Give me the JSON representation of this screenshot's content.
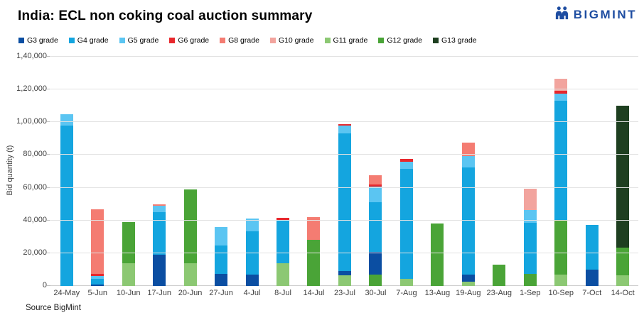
{
  "brand": {
    "name": "BIGMINT",
    "color": "#1E4DA1"
  },
  "source": "Source BigMint",
  "grade_colors": {
    "G3": "#0B4EA2",
    "G4": "#14A5DF",
    "G5": "#5BC5F2",
    "G6": "#E8282D",
    "G8": "#F47C72",
    "G10": "#F2A49E",
    "G11": "#8CC873",
    "G12": "#4AA437",
    "G13": "#1E3F20"
  },
  "chart_data": {
    "type": "bar",
    "stacked": true,
    "grid": true,
    "legend_position": "top",
    "title": "India: ECL non coking coal auction summary",
    "ylabel": "Bid quantity (t)",
    "xlabel": "",
    "ylim": [
      0,
      140000
    ],
    "yticks": [
      {
        "value": 0,
        "label": "0"
      },
      {
        "value": 20000,
        "label": "20,000"
      },
      {
        "value": 40000,
        "label": "40,000"
      },
      {
        "value": 60000,
        "label": "60,000"
      },
      {
        "value": 80000,
        "label": "80,000"
      },
      {
        "value": 100000,
        "label": "1,00,000"
      },
      {
        "value": 120000,
        "label": "1,20,000"
      },
      {
        "value": 140000,
        "label": "1,40,000"
      }
    ],
    "legend": [
      {
        "grade": "G3",
        "label": "G3 grade"
      },
      {
        "grade": "G4",
        "label": "G4 grade"
      },
      {
        "grade": "G5",
        "label": "G5 grade"
      },
      {
        "grade": "G6",
        "label": "G6 grade"
      },
      {
        "grade": "G8",
        "label": "G8 grade"
      },
      {
        "grade": "G10",
        "label": "G10 grade"
      },
      {
        "grade": "G11",
        "label": "G11 grade"
      },
      {
        "grade": "G12",
        "label": "G12 grade"
      },
      {
        "grade": "G13",
        "label": "G13 grade"
      }
    ],
    "categories": [
      "24-May",
      "5-Jun",
      "10-Jun",
      "17-Jun",
      "20-Jun",
      "27-Jun",
      "4-Jul",
      "8-Jul",
      "14-Jul",
      "23-Jul",
      "30-Jul",
      "7-Aug",
      "13-Aug",
      "19-Aug",
      "23-Aug",
      "1-Sep",
      "10-Sep",
      "7-Oct",
      "14-Oct"
    ],
    "bars": [
      {
        "category": "24-May",
        "total": 105000,
        "segments": [
          {
            "grade": "G4",
            "value": 98000
          },
          {
            "grade": "G5",
            "value": 7000
          }
        ]
      },
      {
        "category": "5-Jun",
        "total": 47000,
        "segments": [
          {
            "grade": "G3",
            "value": 1000
          },
          {
            "grade": "G4",
            "value": 3500
          },
          {
            "grade": "G5",
            "value": 1500
          },
          {
            "grade": "G6",
            "value": 1500
          },
          {
            "grade": "G8",
            "value": 39500
          }
        ]
      },
      {
        "category": "10-Jun",
        "total": 39000,
        "segments": [
          {
            "grade": "G11",
            "value": 14000
          },
          {
            "grade": "G12",
            "value": 25000
          }
        ]
      },
      {
        "category": "17-Jun",
        "total": 50000,
        "segments": [
          {
            "grade": "G3",
            "value": 19000
          },
          {
            "grade": "G4",
            "value": 26000
          },
          {
            "grade": "G5",
            "value": 4000
          },
          {
            "grade": "G8",
            "value": 1000
          }
        ]
      },
      {
        "category": "20-Jun",
        "total": 59000,
        "segments": [
          {
            "grade": "G11",
            "value": 14000
          },
          {
            "grade": "G12",
            "value": 45000
          }
        ]
      },
      {
        "category": "27-Jun",
        "total": 36000,
        "segments": [
          {
            "grade": "G3",
            "value": 7500
          },
          {
            "grade": "G4",
            "value": 17000
          },
          {
            "grade": "G5",
            "value": 11500
          }
        ]
      },
      {
        "category": "4-Jul",
        "total": 41000,
        "segments": [
          {
            "grade": "G3",
            "value": 7000
          },
          {
            "grade": "G4",
            "value": 26500
          },
          {
            "grade": "G5",
            "value": 7500
          }
        ]
      },
      {
        "category": "8-Jul",
        "total": 41500,
        "segments": [
          {
            "grade": "G11",
            "value": 14000
          },
          {
            "grade": "G4",
            "value": 26500
          },
          {
            "grade": "G6",
            "value": 1000
          }
        ]
      },
      {
        "category": "14-Jul",
        "total": 42000,
        "segments": [
          {
            "grade": "G12",
            "value": 28000
          },
          {
            "grade": "G8",
            "value": 14000
          }
        ]
      },
      {
        "category": "23-Jul",
        "total": 99000,
        "segments": [
          {
            "grade": "G11",
            "value": 6500
          },
          {
            "grade": "G3",
            "value": 2500
          },
          {
            "grade": "G4",
            "value": 84000
          },
          {
            "grade": "G5",
            "value": 5000
          },
          {
            "grade": "G6",
            "value": 1000
          }
        ]
      },
      {
        "category": "30-Jul",
        "total": 67500,
        "segments": [
          {
            "grade": "G12",
            "value": 7000
          },
          {
            "grade": "G3",
            "value": 14000
          },
          {
            "grade": "G4",
            "value": 30000
          },
          {
            "grade": "G5",
            "value": 9500
          },
          {
            "grade": "G6",
            "value": 1500
          },
          {
            "grade": "G8",
            "value": 5500
          }
        ]
      },
      {
        "category": "7-Aug",
        "total": 77500,
        "segments": [
          {
            "grade": "G11",
            "value": 4500
          },
          {
            "grade": "G4",
            "value": 67000
          },
          {
            "grade": "G5",
            "value": 4500
          },
          {
            "grade": "G6",
            "value": 1500
          }
        ]
      },
      {
        "category": "13-Aug",
        "total": 38000,
        "segments": [
          {
            "grade": "G12",
            "value": 38000
          }
        ]
      },
      {
        "category": "19-Aug",
        "total": 87500,
        "segments": [
          {
            "grade": "G11",
            "value": 2500
          },
          {
            "grade": "G3",
            "value": 4500
          },
          {
            "grade": "G4",
            "value": 65500
          },
          {
            "grade": "G5",
            "value": 7000
          },
          {
            "grade": "G8",
            "value": 8000
          }
        ]
      },
      {
        "category": "23-Aug",
        "total": 13000,
        "segments": [
          {
            "grade": "G12",
            "value": 13000
          }
        ]
      },
      {
        "category": "1-Sep",
        "total": 59500,
        "segments": [
          {
            "grade": "G12",
            "value": 7500
          },
          {
            "grade": "G4",
            "value": 31000
          },
          {
            "grade": "G5",
            "value": 8000
          },
          {
            "grade": "G10",
            "value": 13000
          }
        ]
      },
      {
        "category": "10-Sep",
        "total": 126500,
        "segments": [
          {
            "grade": "G11",
            "value": 7000
          },
          {
            "grade": "G12",
            "value": 33500
          },
          {
            "grade": "G4",
            "value": 72500
          },
          {
            "grade": "G5",
            "value": 4500
          },
          {
            "grade": "G6",
            "value": 1500
          },
          {
            "grade": "G10",
            "value": 7500
          }
        ]
      },
      {
        "category": "7-Oct",
        "total": 37500,
        "segments": [
          {
            "grade": "G3",
            "value": 10000
          },
          {
            "grade": "G4",
            "value": 27500
          }
        ]
      },
      {
        "category": "14-Oct",
        "total": 110000,
        "segments": [
          {
            "grade": "G11",
            "value": 6500
          },
          {
            "grade": "G12",
            "value": 17000
          },
          {
            "grade": "G13",
            "value": 86500
          }
        ]
      }
    ]
  }
}
